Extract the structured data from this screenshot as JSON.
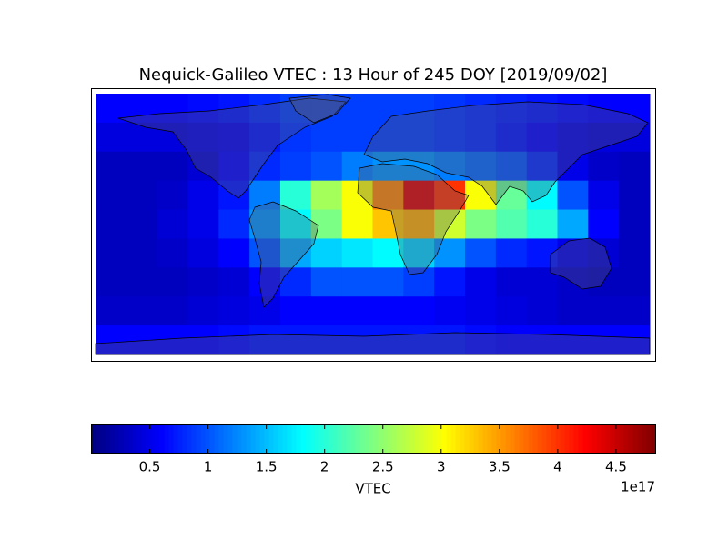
{
  "chart_data": {
    "type": "heatmap",
    "title": "Nequick-Galileo VTEC : 13 Hour of 245 DOY [2019/09/02]",
    "colormap": "jet",
    "z": [
      [
        0.6,
        0.6,
        0.6,
        0.65,
        0.7,
        0.8,
        0.9,
        0.9,
        0.9,
        0.9,
        0.9,
        0.85,
        0.8,
        0.75,
        0.7,
        0.65,
        0.6,
        0.6
      ],
      [
        0.45,
        0.45,
        0.45,
        0.5,
        0.55,
        0.7,
        0.85,
        0.9,
        0.9,
        0.9,
        0.9,
        0.85,
        0.8,
        0.7,
        0.6,
        0.5,
        0.45,
        0.45
      ],
      [
        0.3,
        0.3,
        0.3,
        0.4,
        0.6,
        0.8,
        0.9,
        1.0,
        1.2,
        1.3,
        1.3,
        1.2,
        1.1,
        1.0,
        0.8,
        0.5,
        0.35,
        0.3
      ],
      [
        0.3,
        0.3,
        0.35,
        0.5,
        0.7,
        1.2,
        2.0,
        2.6,
        3.0,
        3.6,
        4.4,
        4.0,
        3.0,
        2.3,
        1.8,
        1.0,
        0.5,
        0.3
      ],
      [
        0.3,
        0.3,
        0.4,
        0.5,
        0.8,
        1.3,
        1.8,
        2.4,
        3.0,
        3.3,
        3.4,
        2.8,
        2.4,
        2.2,
        2.0,
        1.4,
        0.6,
        0.3
      ],
      [
        0.3,
        0.3,
        0.35,
        0.45,
        0.6,
        1.0,
        1.4,
        1.6,
        1.7,
        1.8,
        1.6,
        1.3,
        1.0,
        0.8,
        0.7,
        0.5,
        0.4,
        0.3
      ],
      [
        0.3,
        0.3,
        0.3,
        0.35,
        0.4,
        0.6,
        0.8,
        1.0,
        1.0,
        1.0,
        0.9,
        0.7,
        0.5,
        0.4,
        0.4,
        0.35,
        0.3,
        0.3
      ],
      [
        0.35,
        0.35,
        0.35,
        0.4,
        0.45,
        0.5,
        0.6,
        0.6,
        0.6,
        0.6,
        0.6,
        0.55,
        0.5,
        0.45,
        0.4,
        0.35,
        0.35,
        0.35
      ],
      [
        0.6,
        0.6,
        0.6,
        0.6,
        0.65,
        0.7,
        0.7,
        0.7,
        0.7,
        0.7,
        0.7,
        0.7,
        0.65,
        0.6,
        0.6,
        0.6,
        0.6,
        0.6
      ]
    ],
    "clim": [
      0,
      4.84
    ],
    "cticks": [
      0.5,
      1.0,
      1.5,
      2.0,
      2.5,
      3.0,
      3.5,
      4.0,
      4.5
    ],
    "colorbar_label": "VTEC",
    "colorbar_offset": "1e17"
  }
}
